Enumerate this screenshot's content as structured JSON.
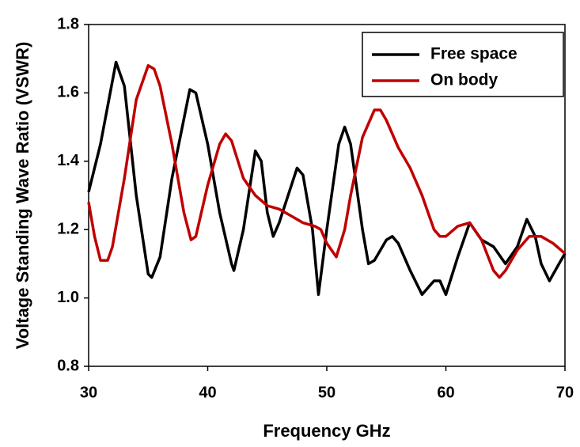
{
  "chart_data": {
    "type": "line",
    "xlabel": "Frequency GHz",
    "ylabel": "Voltage Standing Wave Ratio (VSWR)",
    "xlim": [
      30,
      70
    ],
    "xticks": [
      30,
      40,
      50,
      60,
      70
    ],
    "ylim": [
      0.8,
      1.8
    ],
    "yticks": [
      0.8,
      {
        "value": 1,
        "label": "1.0"
      },
      1.2,
      1.4,
      1.6,
      1.8
    ],
    "legend": "upper right",
    "series": [
      {
        "name": "Free space",
        "color": "#000000",
        "x": [
          30,
          31,
          32.3,
          33,
          34,
          35,
          35.3,
          36,
          37,
          38.5,
          39,
          40,
          41,
          42,
          42.2,
          43,
          44,
          44.5,
          45,
          45.5,
          46,
          47.5,
          48,
          48.8,
          49.3,
          50,
          51,
          51.5,
          52,
          53,
          53.5,
          54,
          55,
          55.5,
          56,
          57,
          58,
          58.5,
          59,
          59.5,
          60,
          61,
          62,
          63,
          64,
          65,
          66,
          66.8,
          67.5,
          68,
          68.7,
          69.5,
          70
        ],
        "values": [
          1.31,
          1.45,
          1.69,
          1.62,
          1.3,
          1.07,
          1.06,
          1.12,
          1.35,
          1.61,
          1.6,
          1.45,
          1.25,
          1.1,
          1.08,
          1.2,
          1.43,
          1.4,
          1.25,
          1.18,
          1.22,
          1.38,
          1.36,
          1.2,
          1.01,
          1.2,
          1.45,
          1.5,
          1.45,
          1.2,
          1.1,
          1.11,
          1.17,
          1.18,
          1.16,
          1.08,
          1.01,
          1.03,
          1.05,
          1.05,
          1.01,
          1.12,
          1.22,
          1.17,
          1.15,
          1.1,
          1.15,
          1.23,
          1.18,
          1.1,
          1.05,
          1.1,
          1.13
        ]
      },
      {
        "name": "On body",
        "color": "#c00000",
        "x": [
          30,
          30.5,
          31,
          31.6,
          32,
          33,
          34,
          35,
          35.5,
          36,
          37,
          38,
          38.6,
          39,
          40,
          41,
          41.5,
          42,
          43,
          44,
          45,
          46,
          47,
          48,
          49,
          49.5,
          50,
          50.8,
          51.5,
          52,
          53,
          54,
          54.5,
          55,
          56,
          57,
          58,
          59,
          59.5,
          60,
          61,
          62,
          63,
          64,
          64.5,
          65,
          66,
          67,
          68,
          69,
          70
        ],
        "values": [
          1.28,
          1.18,
          1.11,
          1.11,
          1.15,
          1.35,
          1.58,
          1.68,
          1.67,
          1.62,
          1.45,
          1.25,
          1.17,
          1.18,
          1.33,
          1.45,
          1.48,
          1.46,
          1.35,
          1.3,
          1.27,
          1.26,
          1.24,
          1.22,
          1.21,
          1.2,
          1.16,
          1.12,
          1.2,
          1.3,
          1.47,
          1.55,
          1.55,
          1.52,
          1.44,
          1.38,
          1.3,
          1.2,
          1.18,
          1.18,
          1.21,
          1.22,
          1.17,
          1.08,
          1.06,
          1.08,
          1.14,
          1.18,
          1.18,
          1.16,
          1.13
        ]
      }
    ]
  }
}
